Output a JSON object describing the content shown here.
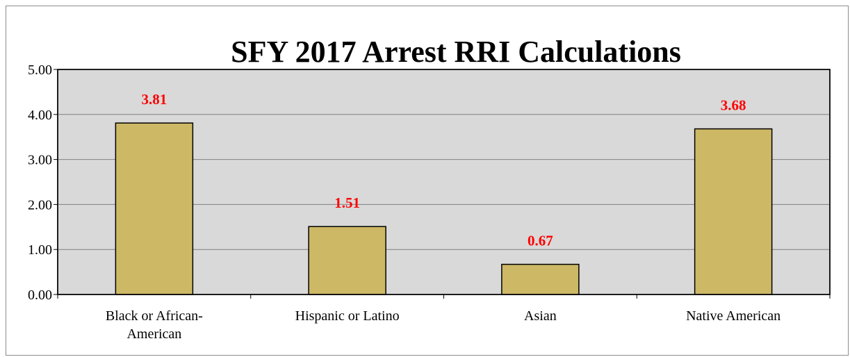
{
  "colors": {
    "plot_background": "#d9d9d9",
    "bar_fill": "#cdb866",
    "bar_stroke": "#000000",
    "data_label": "#ff0000",
    "gridline": "#808080"
  },
  "chart_data": {
    "type": "bar",
    "title": "SFY 2017 Arrest RRI Calculations",
    "xlabel": "",
    "ylabel": "",
    "categories": [
      [
        "Black or African-",
        "American"
      ],
      [
        "Hispanic or Latino"
      ],
      [
        "Asian"
      ],
      [
        "Native American"
      ]
    ],
    "values": [
      3.81,
      1.51,
      0.67,
      3.68
    ],
    "data_labels": [
      "3.81",
      "1.51",
      "0.67",
      "3.68"
    ],
    "ylim": [
      0,
      5
    ],
    "yticks": [
      "0.00",
      "1.00",
      "2.00",
      "3.00",
      "4.00",
      "5.00"
    ],
    "grid": true,
    "legend": "none"
  }
}
